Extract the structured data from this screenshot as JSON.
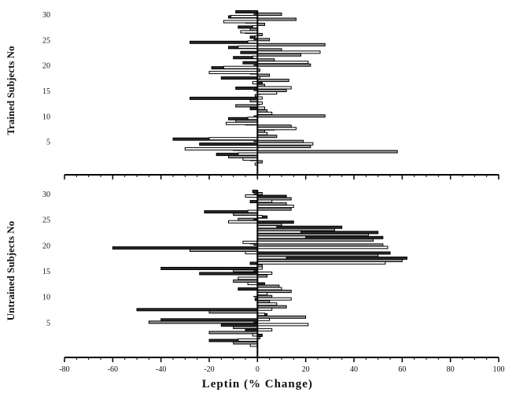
{
  "chart_data": [
    {
      "type": "bar",
      "orientation": "horizontal",
      "ylabel": "Trained Subjects No",
      "ylim": [
        0,
        30
      ],
      "ytick_labels": [
        "5",
        "10",
        "15",
        "20",
        "25",
        "30"
      ],
      "xlim": [
        -80,
        100
      ],
      "grid": false,
      "subjects": [
        1,
        2,
        3,
        4,
        5,
        6,
        7,
        8,
        9,
        10,
        11,
        12,
        13,
        14,
        15,
        16,
        17,
        18,
        19,
        20,
        21,
        22,
        23,
        24,
        25,
        26,
        27,
        28,
        29,
        30
      ],
      "series": [
        {
          "fill": "#2a2a2a",
          "values": [
            -3,
            -17,
            -10,
            -24,
            -35,
            4,
            7,
            -5,
            -12,
            1,
            -3,
            1,
            -28,
            1,
            -9,
            2,
            -15,
            -3,
            -19,
            -6,
            -10,
            -7,
            -12,
            -28,
            -3,
            -5,
            -8,
            -5,
            -12,
            -9
          ]
        },
        {
          "fill": "#9a9a9a",
          "values": [
            2,
            -12,
            58,
            22,
            19,
            8,
            3,
            14,
            -9,
            28,
            4,
            -9,
            -3,
            -1,
            12,
            3,
            13,
            5,
            1,
            22,
            7,
            18,
            10,
            28,
            5,
            2,
            -3,
            3,
            16,
            10
          ]
        },
        {
          "fill": "#ffffff",
          "values": [
            -1,
            -6,
            -8,
            -30,
            23,
            -20,
            4,
            16,
            -13,
            -4,
            6,
            3,
            2,
            2,
            8,
            14,
            -2,
            1,
            -20,
            -14,
            21,
            -2,
            26,
            -8,
            -4,
            -1,
            -7,
            -2,
            -14,
            -11
          ]
        }
      ]
    },
    {
      "type": "bar",
      "orientation": "horizontal",
      "ylabel": "Untrained Subjects No",
      "ylim": [
        0,
        30
      ],
      "ytick_labels": [
        "5",
        "10",
        "15",
        "20",
        "25",
        "30"
      ],
      "xlim": [
        -80,
        100
      ],
      "xlabel": "Leptin (% Change)",
      "xtick_labels": [
        "-80",
        "-60",
        "-40",
        "-20",
        "0",
        "20",
        "40",
        "60",
        "80",
        "100"
      ],
      "grid": false,
      "subjects": [
        1,
        2,
        3,
        4,
        5,
        6,
        7,
        8,
        9,
        10,
        11,
        12,
        13,
        14,
        15,
        16,
        17,
        18,
        19,
        20,
        21,
        22,
        23,
        24,
        25,
        26,
        27,
        28,
        29,
        30
      ],
      "series": [
        {
          "fill": "#2a2a2a",
          "values": [
            -20,
            2,
            -5,
            -15,
            -40,
            4,
            -50,
            1,
            -1,
            3,
            -8,
            3,
            -2,
            -24,
            -40,
            -3,
            62,
            55,
            -60,
            -3,
            52,
            50,
            35,
            15,
            4,
            -22,
            5,
            -3,
            12,
            -2
          ]
        },
        {
          "fill": "#9a9a9a",
          "values": [
            -10,
            1,
            -20,
            -10,
            -45,
            20,
            -20,
            12,
            5,
            6,
            14,
            9,
            -10,
            4,
            -10,
            2,
            60,
            50,
            -28,
            52,
            48,
            46,
            32,
            10,
            -8,
            -10,
            14,
            12,
            14,
            2
          ]
        },
        {
          "fill": "#ffffff",
          "values": [
            -3,
            -8,
            -2,
            6,
            21,
            5,
            3,
            6,
            8,
            14,
            4,
            10,
            -4,
            -8,
            6,
            2,
            53,
            12,
            -5,
            54,
            -6,
            20,
            18,
            8,
            -12,
            2,
            -4,
            15,
            6,
            -5
          ]
        }
      ]
    }
  ]
}
